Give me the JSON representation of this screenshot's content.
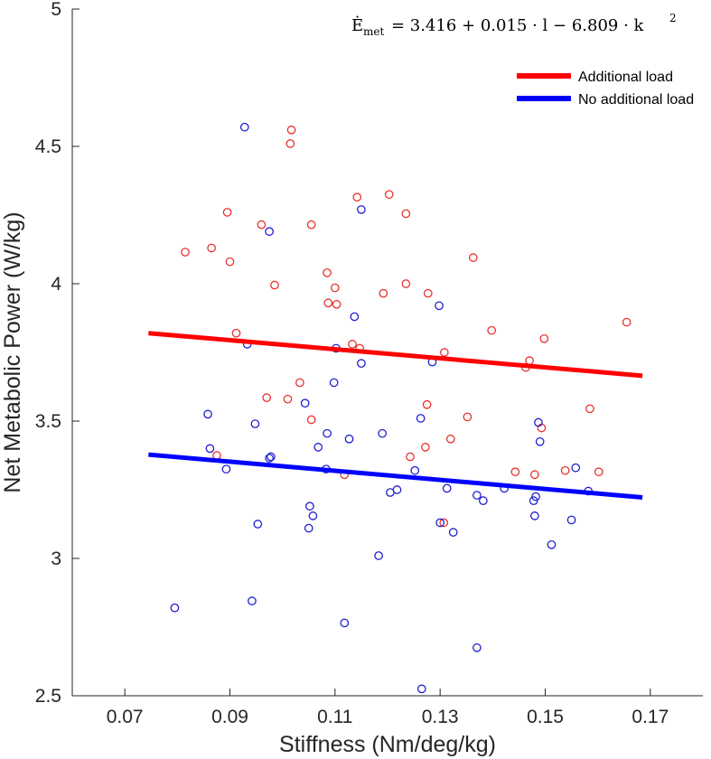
{
  "chart_data": {
    "type": "scatter",
    "title": "",
    "xlabel": "Stiffness (Nm/deg/kg)",
    "ylabel": "Net Metabolic Power (W/kg)",
    "xlim": [
      0.06,
      0.18
    ],
    "ylim": [
      2.5,
      5
    ],
    "xticks": [
      0.07,
      0.09,
      0.11,
      0.13,
      0.15,
      0.17
    ],
    "xtick_labels": [
      "0.07",
      "0.09",
      "0.11",
      "0.13",
      "0.15",
      "0.17"
    ],
    "yticks": [
      2.5,
      3,
      3.5,
      4,
      4.5,
      5
    ],
    "ytick_labels": [
      "2.5",
      "3",
      "3.5",
      "4",
      "4.5",
      "5"
    ],
    "equation": {
      "lhs": "Ė",
      "lhs_sub": "met",
      "rhs": "= 3.416 + 0.015 · l − 6.809 · k",
      "rhs_sup": "2"
    },
    "legend": {
      "position": "top-right",
      "entries": [
        {
          "label": "Additional load",
          "color": "#ff0000"
        },
        {
          "label": "No additional load",
          "color": "#0000ff"
        }
      ]
    },
    "fit_x_range": [
      0.0745,
      0.1685
    ],
    "series": [
      {
        "name": "Additional load",
        "color": "#e8322d",
        "line_color": "#ff0000",
        "fit": {
          "x": [
            0.0745,
            0.1685
          ],
          "y": [
            3.82,
            3.665
          ]
        },
        "points": [
          [
            0.0815,
            4.115
          ],
          [
            0.0865,
            4.13
          ],
          [
            0.0875,
            3.375
          ],
          [
            0.0895,
            4.26
          ],
          [
            0.09,
            4.08
          ],
          [
            0.0912,
            3.82
          ],
          [
            0.096,
            4.215
          ],
          [
            0.097,
            3.585
          ],
          [
            0.0985,
            3.995
          ],
          [
            0.101,
            3.58
          ],
          [
            0.1015,
            4.51
          ],
          [
            0.1017,
            4.56
          ],
          [
            0.1033,
            3.64
          ],
          [
            0.1055,
            4.215
          ],
          [
            0.1055,
            3.505
          ],
          [
            0.1085,
            4.04
          ],
          [
            0.1087,
            3.93
          ],
          [
            0.11,
            3.985
          ],
          [
            0.1103,
            3.925
          ],
          [
            0.1118,
            3.305
          ],
          [
            0.1133,
            3.78
          ],
          [
            0.1142,
            4.315
          ],
          [
            0.1147,
            3.765
          ],
          [
            0.1192,
            3.965
          ],
          [
            0.1203,
            4.325
          ],
          [
            0.1235,
            4.255
          ],
          [
            0.1235,
            4.0
          ],
          [
            0.1243,
            3.37
          ],
          [
            0.1272,
            3.405
          ],
          [
            0.1275,
            3.56
          ],
          [
            0.1277,
            3.965
          ],
          [
            0.1307,
            3.13
          ],
          [
            0.1308,
            3.75
          ],
          [
            0.132,
            3.435
          ],
          [
            0.1352,
            3.515
          ],
          [
            0.1363,
            4.095
          ],
          [
            0.1398,
            3.83
          ],
          [
            0.1443,
            3.315
          ],
          [
            0.1463,
            3.695
          ],
          [
            0.147,
            3.72
          ],
          [
            0.148,
            3.305
          ],
          [
            0.1493,
            3.475
          ],
          [
            0.1498,
            3.8
          ],
          [
            0.1538,
            3.32
          ],
          [
            0.1585,
            3.545
          ],
          [
            0.1602,
            3.315
          ],
          [
            0.1655,
            3.86
          ]
        ]
      },
      {
        "name": "No additional load",
        "color": "#1f1fd2",
        "line_color": "#0000ff",
        "fit": {
          "x": [
            0.0745,
            0.1685
          ],
          "y": [
            3.378,
            3.222
          ]
        },
        "points": [
          [
            0.0795,
            2.82
          ],
          [
            0.0858,
            3.525
          ],
          [
            0.0862,
            3.4
          ],
          [
            0.0893,
            3.325
          ],
          [
            0.0928,
            4.57
          ],
          [
            0.0933,
            3.78
          ],
          [
            0.0942,
            2.845
          ],
          [
            0.0948,
            3.49
          ],
          [
            0.0953,
            3.125
          ],
          [
            0.0975,
            4.19
          ],
          [
            0.0975,
            3.365
          ],
          [
            0.0978,
            3.37
          ],
          [
            0.1043,
            3.565
          ],
          [
            0.105,
            3.11
          ],
          [
            0.1052,
            3.19
          ],
          [
            0.1058,
            3.155
          ],
          [
            0.1068,
            3.405
          ],
          [
            0.1083,
            3.325
          ],
          [
            0.1085,
            3.455
          ],
          [
            0.1098,
            3.64
          ],
          [
            0.1102,
            3.765
          ],
          [
            0.1118,
            2.765
          ],
          [
            0.1127,
            3.435
          ],
          [
            0.1137,
            3.88
          ],
          [
            0.115,
            3.71
          ],
          [
            0.115,
            4.27
          ],
          [
            0.1183,
            3.01
          ],
          [
            0.119,
            3.455
          ],
          [
            0.1205,
            3.24
          ],
          [
            0.1218,
            3.25
          ],
          [
            0.1252,
            3.32
          ],
          [
            0.1263,
            3.51
          ],
          [
            0.1265,
            2.525
          ],
          [
            0.1285,
            3.715
          ],
          [
            0.1298,
            3.92
          ],
          [
            0.13,
            3.13
          ],
          [
            0.1313,
            3.255
          ],
          [
            0.1325,
            3.095
          ],
          [
            0.137,
            3.23
          ],
          [
            0.137,
            2.675
          ],
          [
            0.1382,
            3.21
          ],
          [
            0.1422,
            3.255
          ],
          [
            0.1478,
            3.21
          ],
          [
            0.148,
            3.155
          ],
          [
            0.1482,
            3.225
          ],
          [
            0.1487,
            3.495
          ],
          [
            0.149,
            3.425
          ],
          [
            0.1512,
            3.05
          ],
          [
            0.155,
            3.14
          ],
          [
            0.1558,
            3.33
          ],
          [
            0.1582,
            3.245
          ]
        ]
      }
    ]
  }
}
